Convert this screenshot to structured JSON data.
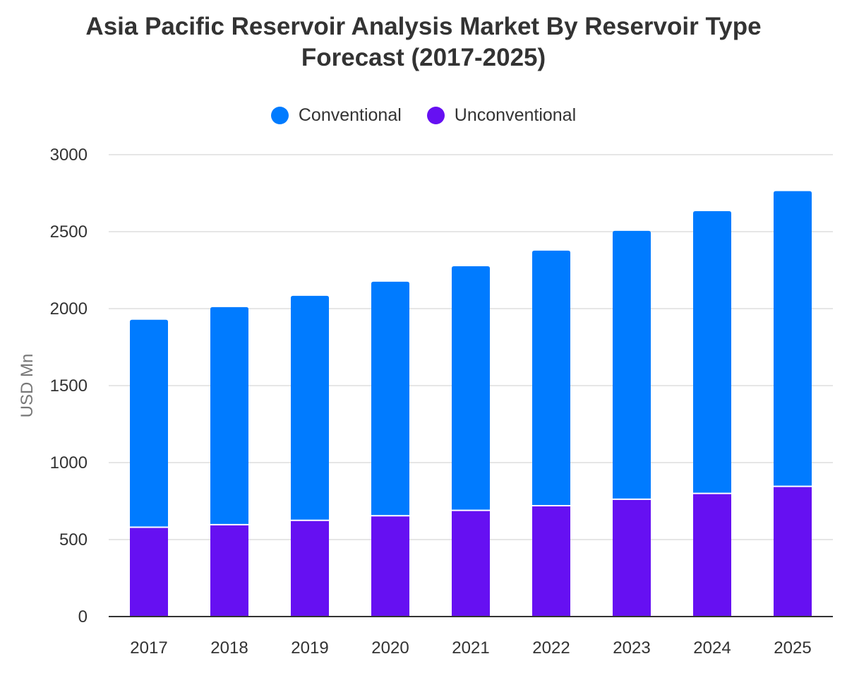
{
  "chart_data": {
    "type": "bar",
    "stacked": true,
    "title_lines": [
      "Asia Pacific Reservoir Analysis Market By Reservoir Type",
      "Forecast (2017-2025)"
    ],
    "xlabel": "",
    "ylabel": "USD Mn",
    "categories": [
      "2017",
      "2018",
      "2019",
      "2020",
      "2021",
      "2022",
      "2023",
      "2024",
      "2025"
    ],
    "series": [
      {
        "name": "Unconventional",
        "color": "#6610F2",
        "values": [
          580,
          597,
          625,
          655,
          690,
          720,
          762,
          800,
          846
        ]
      },
      {
        "name": "Conventional",
        "color": "#007BFF",
        "values": [
          1348,
          1413,
          1458,
          1520,
          1585,
          1657,
          1743,
          1833,
          1917
        ]
      }
    ],
    "ylim": [
      0,
      3000
    ],
    "yticks": [
      0,
      500,
      1000,
      1500,
      2000,
      2500,
      3000
    ],
    "grid": true,
    "legend_position": "top",
    "legend_order": [
      "Conventional",
      "Unconventional"
    ]
  }
}
